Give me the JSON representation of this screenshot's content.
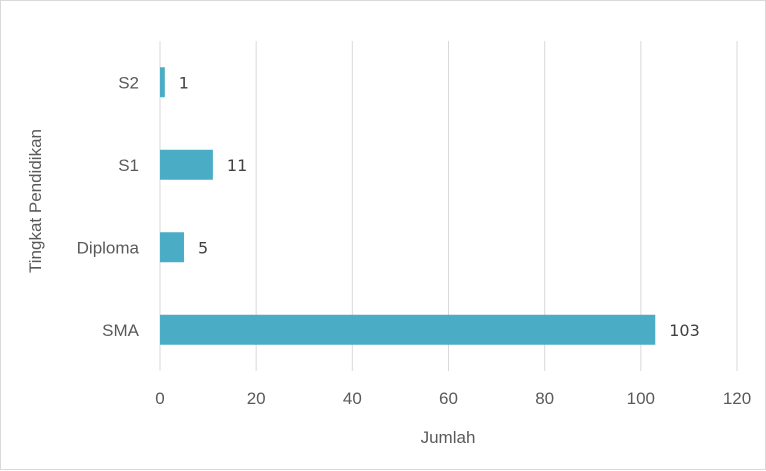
{
  "chart_data": {
    "type": "bar",
    "orientation": "horizontal",
    "categories": [
      "S2",
      "S1",
      "Diploma",
      "SMA"
    ],
    "values": [
      1,
      11,
      5,
      103
    ],
    "data_labels": [
      "1",
      "11",
      "5",
      "103"
    ],
    "xlabel": "Jumlah",
    "ylabel": "Tingkat Pendidikan",
    "xlim": [
      0,
      120
    ],
    "xticks": [
      "0",
      "20",
      "40",
      "60",
      "80",
      "100",
      "120"
    ],
    "grid": true,
    "legend": "none",
    "bar_color": "#4bacc6",
    "grid_color": "#d9d9d9"
  }
}
